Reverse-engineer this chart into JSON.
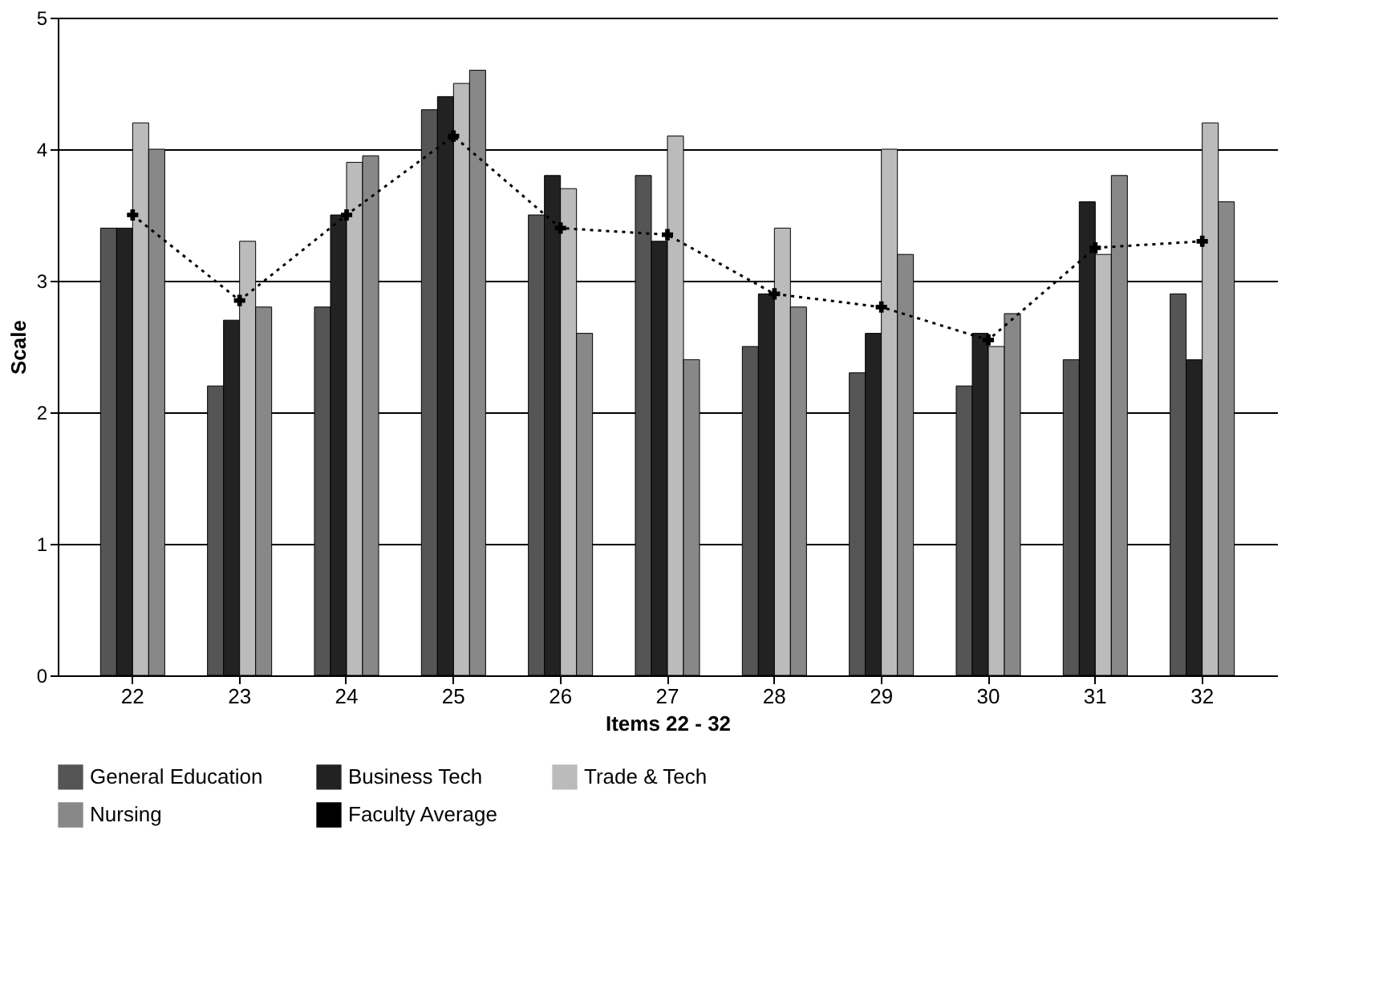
{
  "chart_data": {
    "type": "bar",
    "xlabel": "Items 22 - 32",
    "ylabel": "Scale",
    "categories": [
      "22",
      "23",
      "24",
      "25",
      "26",
      "27",
      "28",
      "29",
      "30",
      "31",
      "32"
    ],
    "series": [
      {
        "name": "General Education",
        "color": "#555555",
        "values": [
          3.4,
          2.2,
          2.8,
          4.3,
          3.5,
          3.8,
          2.5,
          2.3,
          2.2,
          2.4,
          2.9
        ]
      },
      {
        "name": "Business Tech",
        "color": "#222222",
        "values": [
          3.4,
          2.7,
          3.5,
          4.4,
          3.8,
          3.3,
          2.9,
          2.6,
          2.6,
          3.6,
          2.4
        ]
      },
      {
        "name": "Trade & Tech",
        "color": "#bbbbbb",
        "values": [
          4.2,
          3.3,
          3.9,
          4.5,
          3.7,
          4.1,
          3.4,
          4.0,
          2.5,
          3.2,
          4.2
        ]
      },
      {
        "name": "Nursing",
        "color": "#888888",
        "values": [
          4.0,
          2.8,
          3.95,
          4.6,
          2.6,
          2.4,
          2.8,
          3.2,
          2.75,
          3.8,
          3.6
        ]
      },
      {
        "name": "Faculty Average",
        "type": "line",
        "color": "#000000",
        "line_style": "dotted",
        "marker": "cross",
        "values": [
          3.5,
          2.85,
          3.5,
          4.1,
          3.4,
          3.35,
          2.9,
          2.8,
          2.55,
          3.25,
          3.3
        ]
      }
    ],
    "ylim": [
      0,
      5
    ],
    "yticks": [
      0,
      1,
      2,
      3,
      4,
      5
    ],
    "grid": "y",
    "legend": "bottom"
  }
}
